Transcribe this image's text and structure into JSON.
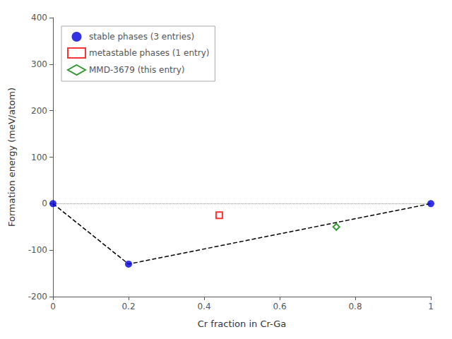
{
  "chart_data": {
    "type": "scatter",
    "xlabel": "Cr fraction in Cr-Ga",
    "ylabel": "Formation energy (meV/atom)",
    "xlim": [
      0.0,
      1.0
    ],
    "ylim": [
      -200,
      400
    ],
    "xticks": [
      0.0,
      0.2,
      0.4,
      0.6,
      0.8,
      1.0
    ],
    "yticks": [
      -200,
      -100,
      0,
      100,
      200,
      300,
      400
    ],
    "grid": false,
    "legend": "upper left",
    "series": [
      {
        "type": "line",
        "color": "black",
        "line_style": "dashed",
        "x": [
          0.0,
          0.2,
          1.0
        ],
        "values": [
          0.0,
          -130.0,
          0.0
        ]
      },
      {
        "type": "hline",
        "color": "gray",
        "line_style": "dotted",
        "values": [
          0
        ]
      },
      {
        "name": "stable phases (3 entries)",
        "type": "scatter",
        "color": "#0000dd",
        "marker": "circle",
        "x": [
          0.0,
          0.2,
          1.0
        ],
        "values": [
          0.0,
          -130.0,
          0.0
        ]
      },
      {
        "name": "metastable phases (1 entry)",
        "type": "scatter",
        "color": "red",
        "marker": "open_square",
        "x": [
          0.44
        ],
        "values": [
          -25.0
        ]
      },
      {
        "name": "MMD-3679 (this entry)",
        "type": "scatter",
        "color": "green",
        "marker": "open_diamond",
        "x": [
          0.75
        ],
        "values": [
          -50.0
        ]
      }
    ]
  }
}
